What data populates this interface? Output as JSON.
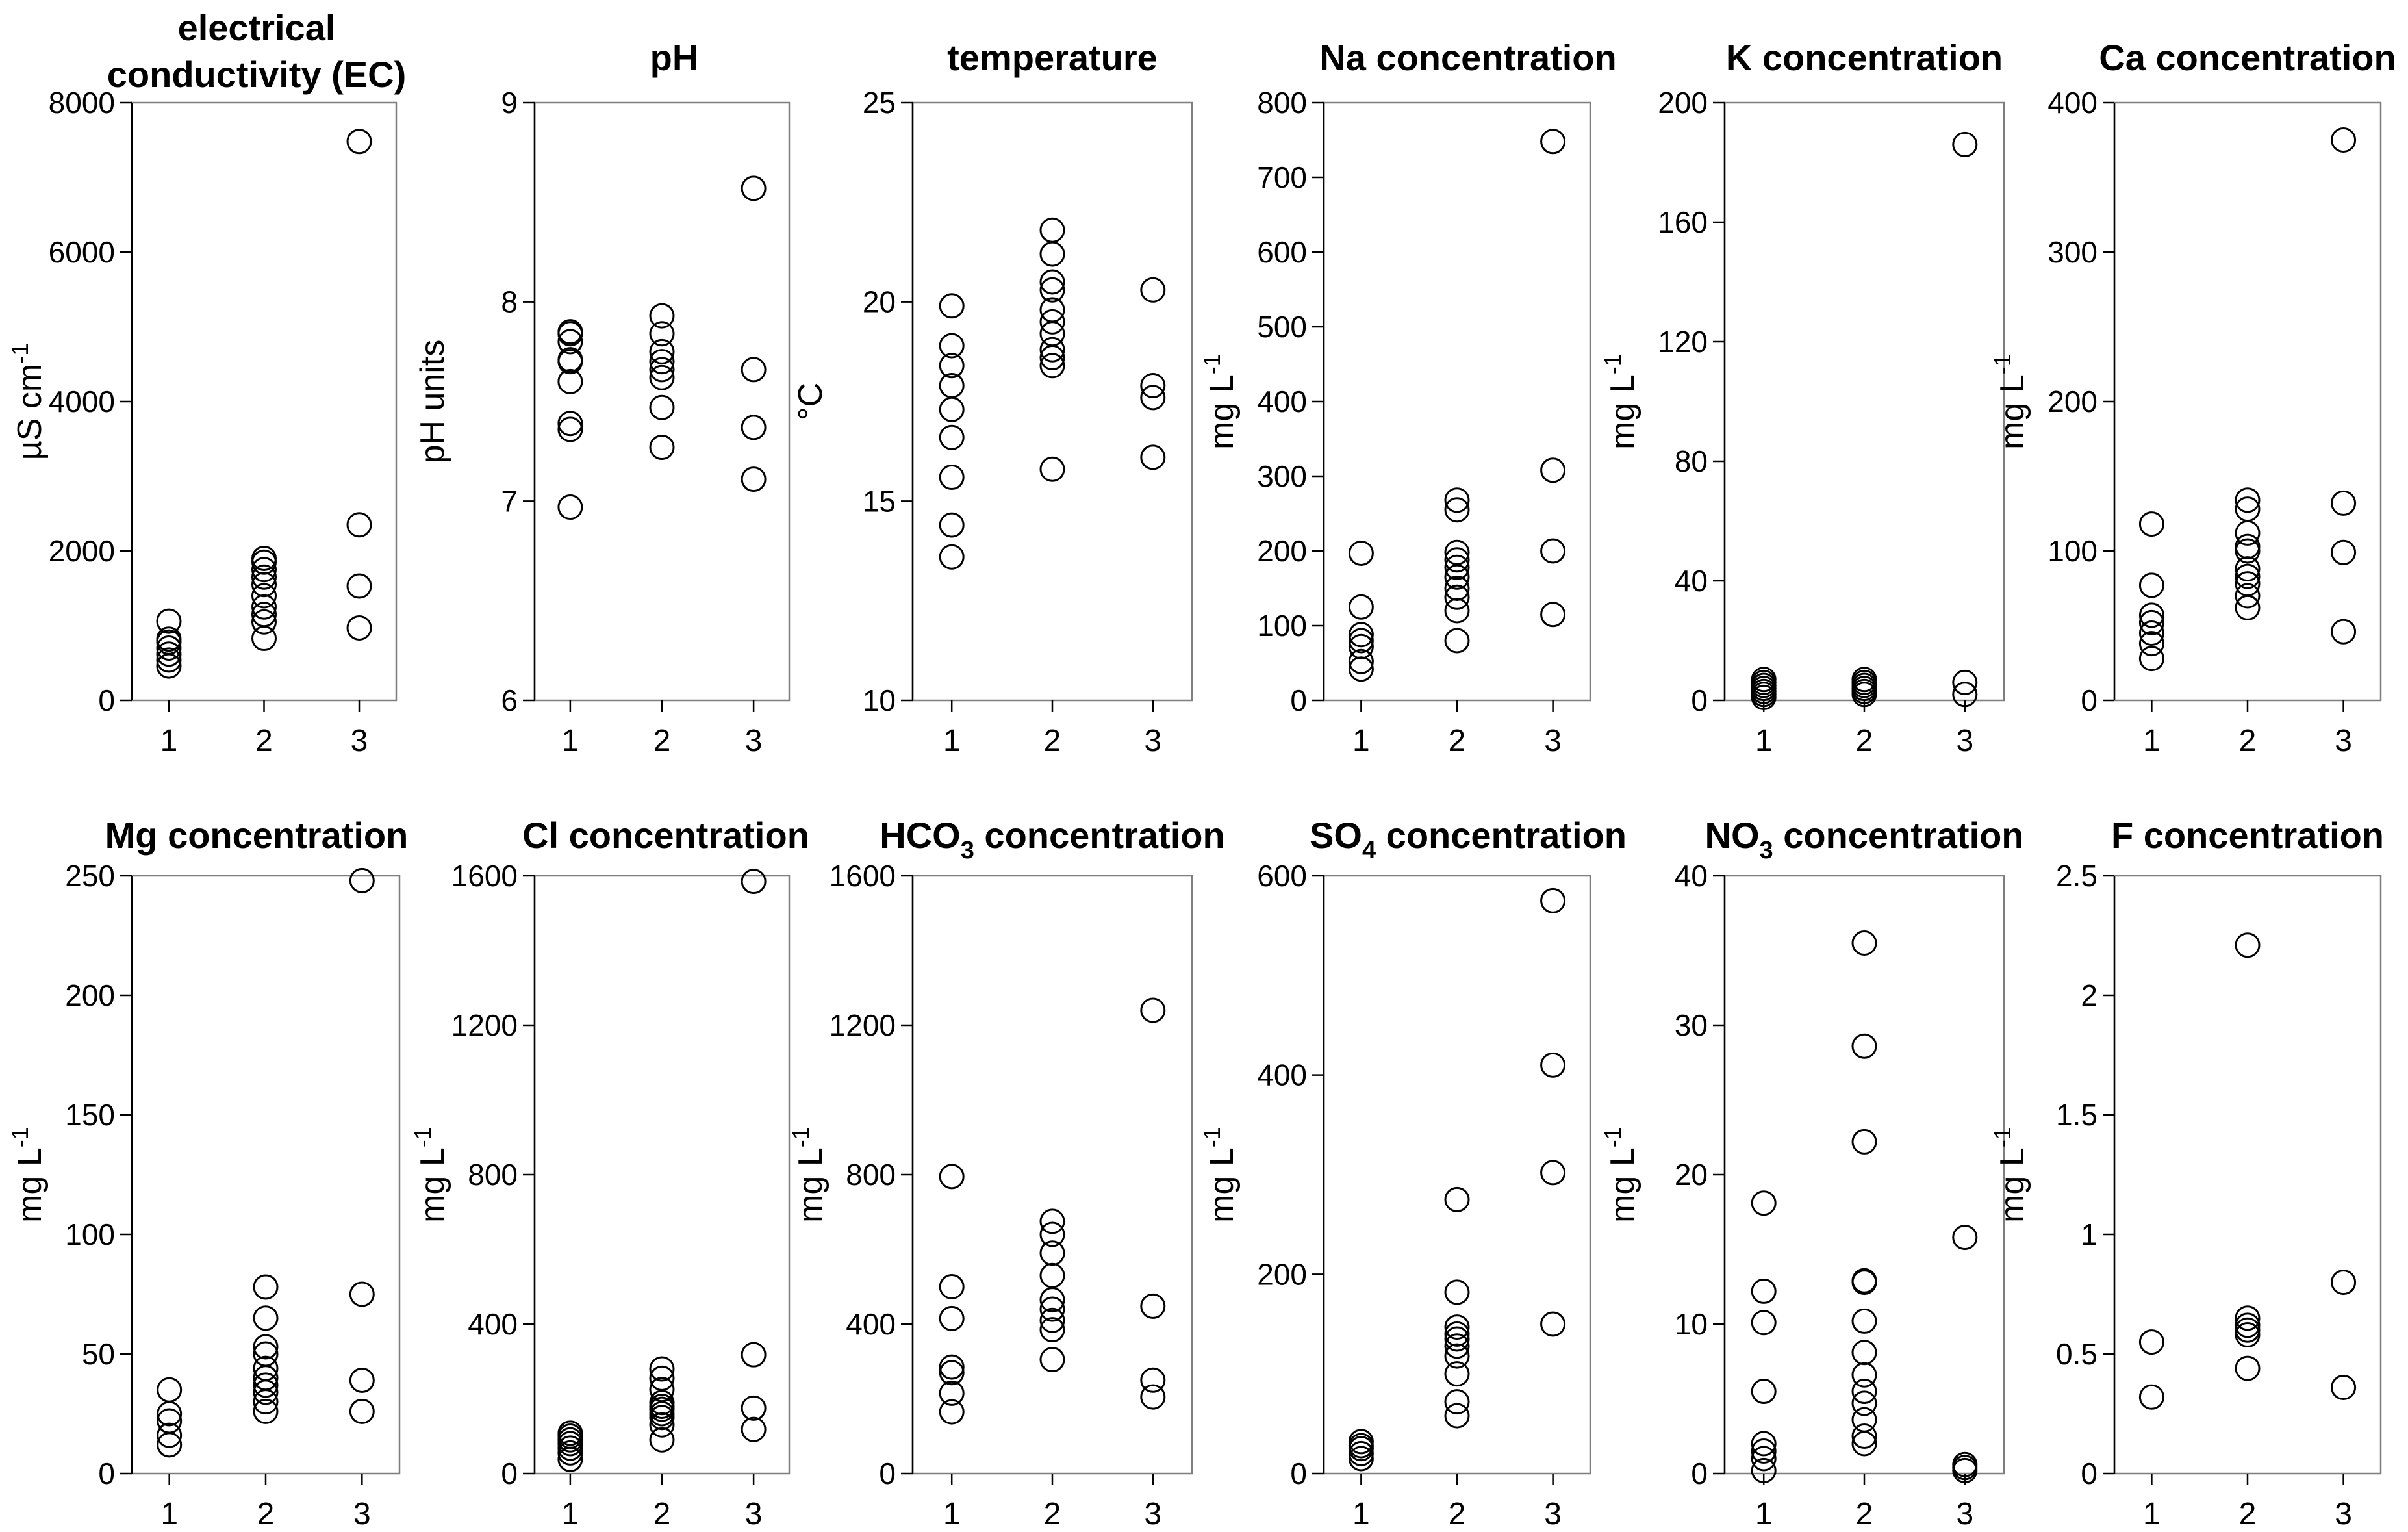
{
  "figure": {
    "background": "#ffffff",
    "marker_color": "#000000",
    "frame_color": "#7f7f7f"
  },
  "chart_data": [
    {
      "type": "scatter",
      "title": [
        "electrical",
        "conductivity (EC)"
      ],
      "ylabel": "µS cm",
      "ylabel_sup": "-1",
      "ylim": [
        0,
        8000
      ],
      "yticks": [
        "0",
        "2000",
        "4000",
        "6000",
        "8000"
      ],
      "categories": [
        "1",
        "2",
        "3"
      ],
      "series": [
        [
          460,
          540,
          620,
          700,
          780,
          820,
          1060
        ],
        [
          830,
          1050,
          1150,
          1250,
          1400,
          1550,
          1650,
          1750,
          1850,
          1900
        ],
        [
          970,
          1530,
          2350,
          7480
        ]
      ]
    },
    {
      "type": "scatter",
      "title": [
        "pH"
      ],
      "ylabel": "pH units",
      "ylabel_sup": "",
      "ylim": [
        6,
        9
      ],
      "yticks": [
        "6",
        "7",
        "8",
        "9"
      ],
      "categories": [
        "1",
        "2",
        "3"
      ],
      "series": [
        [
          6.97,
          7.36,
          7.39,
          7.6,
          7.7,
          7.71,
          7.8,
          7.84,
          7.85
        ],
        [
          7.27,
          7.47,
          7.62,
          7.66,
          7.7,
          7.75,
          7.84,
          7.93
        ],
        [
          7.11,
          7.37,
          7.66,
          8.57
        ]
      ]
    },
    {
      "type": "scatter",
      "title": [
        "temperature"
      ],
      "ylabel": "°C",
      "ylabel_sup": "",
      "ylim": [
        10,
        25
      ],
      "yticks": [
        "10",
        "15",
        "20",
        "25"
      ],
      "categories": [
        "1",
        "2",
        "3"
      ],
      "series": [
        [
          13.6,
          14.4,
          15.6,
          16.6,
          17.3,
          17.9,
          18.4,
          18.9,
          19.9
        ],
        [
          15.8,
          18.4,
          18.6,
          18.8,
          19.2,
          19.5,
          19.8,
          20.3,
          20.5,
          21.2,
          21.8
        ],
        [
          16.1,
          17.6,
          17.9,
          20.3
        ]
      ]
    },
    {
      "type": "scatter",
      "title": [
        "Na concentration"
      ],
      "ylabel": "mg L",
      "ylabel_sup": "-1",
      "ylim": [
        0,
        800
      ],
      "yticks": [
        "0",
        "100",
        "200",
        "300",
        "400",
        "500",
        "600",
        "700",
        "800"
      ],
      "categories": [
        "1",
        "2",
        "3"
      ],
      "series": [
        [
          42,
          52,
          72,
          80,
          88,
          125,
          197
        ],
        [
          80,
          120,
          138,
          150,
          165,
          178,
          188,
          198,
          255,
          268
        ],
        [
          115,
          200,
          308,
          748
        ]
      ]
    },
    {
      "type": "scatter",
      "title": [
        "K concentration"
      ],
      "ylabel": "mg L",
      "ylabel_sup": "-1",
      "ylim": [
        0,
        200
      ],
      "yticks": [
        "0",
        "40",
        "80",
        "120",
        "160",
        "200"
      ],
      "categories": [
        "1",
        "2",
        "3"
      ],
      "series": [
        [
          1,
          2,
          3,
          4,
          5,
          6,
          7
        ],
        [
          2,
          3,
          4,
          5,
          6,
          7
        ],
        [
          2,
          6,
          186
        ]
      ]
    },
    {
      "type": "scatter",
      "title": [
        "Ca concentration"
      ],
      "ylabel": "mg L",
      "ylabel_sup": "-1",
      "ylim": [
        0,
        400
      ],
      "yticks": [
        "0",
        "100",
        "200",
        "300",
        "400"
      ],
      "categories": [
        "1",
        "2",
        "3"
      ],
      "series": [
        [
          28,
          38,
          45,
          52,
          57,
          77,
          118
        ],
        [
          62,
          70,
          78,
          83,
          88,
          100,
          103,
          112,
          128,
          134
        ],
        [
          46,
          99,
          132,
          375
        ]
      ]
    },
    {
      "type": "scatter",
      "title": [
        "Mg concentration"
      ],
      "ylabel": "mg L",
      "ylabel_sup": "-1",
      "ylim": [
        0,
        250
      ],
      "yticks": [
        "0",
        "50",
        "100",
        "150",
        "200",
        "250"
      ],
      "categories": [
        "1",
        "2",
        "3"
      ],
      "series": [
        [
          12,
          16,
          22,
          25,
          35
        ],
        [
          26,
          30,
          34,
          37,
          40,
          44,
          50,
          53,
          65,
          78
        ],
        [
          26,
          39,
          75,
          248
        ]
      ]
    },
    {
      "type": "scatter",
      "title": [
        "Cl concentration"
      ],
      "ylabel": "mg L",
      "ylabel_sup": "-1",
      "ylim": [
        0,
        1600
      ],
      "yticks": [
        "0",
        "400",
        "800",
        "1200",
        "1600"
      ],
      "categories": [
        "1",
        "2",
        "3"
      ],
      "series": [
        [
          38,
          55,
          68,
          80,
          90,
          100,
          108
        ],
        [
          90,
          130,
          150,
          160,
          172,
          180,
          190,
          225,
          255,
          280
        ],
        [
          118,
          175,
          318,
          1585
        ]
      ]
    },
    {
      "type": "scatter",
      "title": [
        "HCO",
        "3",
        " concentration"
      ],
      "ylabel": "mg L",
      "ylabel_sup": "-1",
      "ylim": [
        0,
        1600
      ],
      "yticks": [
        "0",
        "400",
        "800",
        "1200",
        "1600"
      ],
      "categories": [
        "1",
        "2",
        "3"
      ],
      "series": [
        [
          165,
          215,
          270,
          285,
          415,
          500,
          795
        ],
        [
          305,
          385,
          410,
          440,
          465,
          530,
          590,
          640,
          675
        ],
        [
          205,
          250,
          448,
          1240
        ]
      ]
    },
    {
      "type": "scatter",
      "title": [
        "SO",
        "4",
        " concentration"
      ],
      "ylabel": "mg L",
      "ylabel_sup": "-1",
      "ylim": [
        0,
        600
      ],
      "yticks": [
        "0",
        "200",
        "400",
        "600"
      ],
      "categories": [
        "1",
        "2",
        "3"
      ],
      "series": [
        [
          15,
          20,
          25,
          28,
          32
        ],
        [
          58,
          72,
          100,
          118,
          128,
          135,
          140,
          147,
          182,
          275
        ],
        [
          150,
          302,
          410,
          575
        ]
      ]
    },
    {
      "type": "scatter",
      "title": [
        "NO",
        "3",
        " concentration"
      ],
      "ylabel": "mg L",
      "ylabel_sup": "-1",
      "ylim": [
        0,
        40
      ],
      "yticks": [
        "0",
        "10",
        "20",
        "30",
        "40"
      ],
      "categories": [
        "1",
        "2",
        "3"
      ],
      "series": [
        [
          0.2,
          1.0,
          1.5,
          2.0,
          5.5,
          10.1,
          12.2,
          18.1
        ],
        [
          2.0,
          2.5,
          3.6,
          4.7,
          5.5,
          6.6,
          8.1,
          10.2,
          12.8,
          12.9,
          22.2,
          28.6,
          35.5
        ],
        [
          0.2,
          0.4,
          0.6,
          15.8
        ]
      ]
    },
    {
      "type": "scatter",
      "title": [
        "F concentration"
      ],
      "ylabel": "mg L",
      "ylabel_sup": "-1",
      "ylim": [
        0,
        2.5
      ],
      "yticks": [
        "0",
        "0.5",
        "1",
        "1.5",
        "2",
        "2.5"
      ],
      "categories": [
        "1",
        "2",
        "3"
      ],
      "series": [
        [
          0.32,
          0.55
        ],
        [
          0.44,
          0.58,
          0.6,
          0.62,
          0.65,
          2.21
        ],
        [
          0.36,
          0.8
        ]
      ]
    }
  ]
}
